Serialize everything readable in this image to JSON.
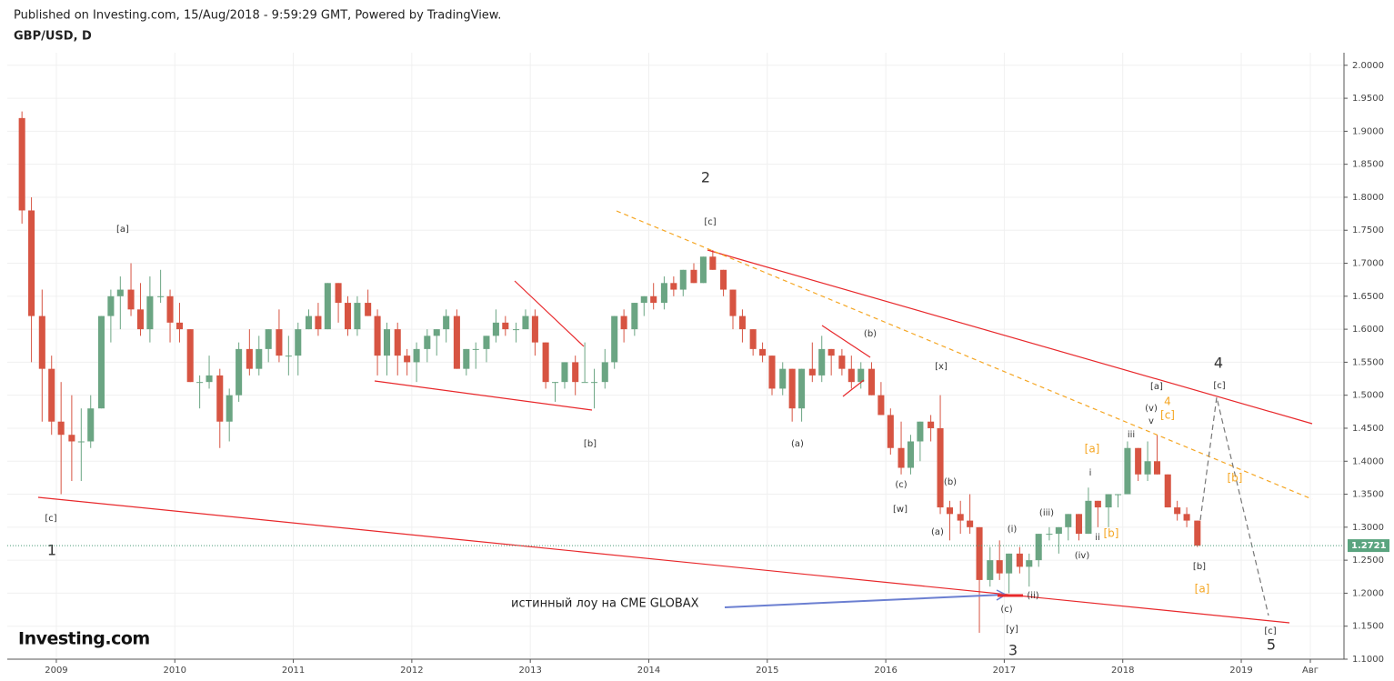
{
  "chart_data": {
    "type": "candlestick",
    "header": "Published on Investing.com, 15/Aug/2018 - 9:59:29 GMT, Powered by TradingView.",
    "symbol": "GBP/USD, D",
    "logo": "Investing.com",
    "up_color": "#6ba583",
    "down_color": "#d75442",
    "grid": true,
    "xlim": [
      2008.586,
      2019.867
    ],
    "ylim": [
      1.1,
      2.019
    ],
    "xticks": [
      2009,
      2010,
      2011,
      2012,
      2013,
      2014,
      2015,
      2016,
      2017,
      2018,
      2019,
      {
        "value": 2019.583,
        "label": "Авг"
      }
    ],
    "yticks": [
      {
        "value": 1.1,
        "label": "1.1000"
      },
      {
        "value": 1.15,
        "label": "1.1500"
      },
      {
        "value": 1.2,
        "label": "1.2000"
      },
      {
        "value": 1.25,
        "label": "1.2500"
      },
      {
        "value": 1.3,
        "label": "1.3000"
      },
      {
        "value": 1.35,
        "label": "1.3500"
      },
      {
        "value": 1.4,
        "label": "1.4000"
      },
      {
        "value": 1.45,
        "label": "1.4500"
      },
      {
        "value": 1.5,
        "label": "1.5000"
      },
      {
        "value": 1.55,
        "label": "1.5500"
      },
      {
        "value": 1.6,
        "label": "1.6000"
      },
      {
        "value": 1.65,
        "label": "1.6500"
      },
      {
        "value": 1.7,
        "label": "1.7000"
      },
      {
        "value": 1.75,
        "label": "1.7500"
      },
      {
        "value": 1.8,
        "label": "1.8000"
      },
      {
        "value": 1.85,
        "label": "1.8500"
      },
      {
        "value": 1.9,
        "label": "1.9000"
      },
      {
        "value": 1.95,
        "label": "1.9500"
      },
      {
        "value": 2.0,
        "label": "2.0000"
      }
    ],
    "x": [
      2008.71,
      2008.79,
      2008.88,
      2008.96,
      2009.04,
      2009.13,
      2009.21,
      2009.29,
      2009.38,
      2009.46,
      2009.54,
      2009.63,
      2009.71,
      2009.79,
      2009.88,
      2009.96,
      2010.04,
      2010.13,
      2010.21,
      2010.29,
      2010.38,
      2010.46,
      2010.54,
      2010.63,
      2010.71,
      2010.79,
      2010.88,
      2010.96,
      2011.04,
      2011.13,
      2011.21,
      2011.29,
      2011.38,
      2011.46,
      2011.54,
      2011.63,
      2011.71,
      2011.79,
      2011.88,
      2011.96,
      2012.04,
      2012.13,
      2012.21,
      2012.29,
      2012.38,
      2012.46,
      2012.54,
      2012.63,
      2012.71,
      2012.79,
      2012.88,
      2012.96,
      2013.04,
      2013.13,
      2013.21,
      2013.29,
      2013.38,
      2013.46,
      2013.54,
      2013.63,
      2013.71,
      2013.79,
      2013.88,
      2013.96,
      2014.04,
      2014.13,
      2014.21,
      2014.29,
      2014.38,
      2014.46,
      2014.54,
      2014.63,
      2014.71,
      2014.79,
      2014.88,
      2014.96,
      2015.04,
      2015.13,
      2015.21,
      2015.29,
      2015.38,
      2015.46,
      2015.54,
      2015.63,
      2015.71,
      2015.79,
      2015.88,
      2015.96,
      2016.04,
      2016.13,
      2016.21,
      2016.29,
      2016.38,
      2016.46,
      2016.54,
      2016.63,
      2016.71,
      2016.79,
      2016.88,
      2016.96,
      2017.04,
      2017.13,
      2017.21,
      2017.29,
      2017.38,
      2017.46,
      2017.54,
      2017.63,
      2017.71,
      2017.79,
      2017.88,
      2017.96,
      2018.04,
      2018.13,
      2018.21,
      2018.29,
      2018.38,
      2018.46,
      2018.54,
      2018.63
    ],
    "open": [
      1.92,
      1.78,
      1.62,
      1.54,
      1.46,
      1.44,
      1.43,
      1.43,
      1.48,
      1.62,
      1.65,
      1.66,
      1.63,
      1.6,
      1.65,
      1.65,
      1.61,
      1.6,
      1.52,
      1.52,
      1.53,
      1.46,
      1.5,
      1.57,
      1.54,
      1.57,
      1.6,
      1.56,
      1.56,
      1.6,
      1.62,
      1.6,
      1.67,
      1.64,
      1.6,
      1.64,
      1.62,
      1.56,
      1.6,
      1.56,
      1.55,
      1.57,
      1.59,
      1.6,
      1.62,
      1.54,
      1.57,
      1.57,
      1.59,
      1.61,
      1.6,
      1.6,
      1.62,
      1.58,
      1.52,
      1.52,
      1.55,
      1.52,
      1.52,
      1.52,
      1.55,
      1.62,
      1.6,
      1.64,
      1.65,
      1.64,
      1.67,
      1.66,
      1.69,
      1.67,
      1.71,
      1.69,
      1.66,
      1.62,
      1.6,
      1.57,
      1.56,
      1.51,
      1.54,
      1.48,
      1.54,
      1.53,
      1.57,
      1.56,
      1.54,
      1.52,
      1.54,
      1.5,
      1.47,
      1.42,
      1.39,
      1.43,
      1.46,
      1.45,
      1.33,
      1.32,
      1.31,
      1.3,
      1.22,
      1.25,
      1.23,
      1.26,
      1.24,
      1.25,
      1.29,
      1.29,
      1.3,
      1.32,
      1.29,
      1.34,
      1.33,
      1.35,
      1.35,
      1.42,
      1.38,
      1.4,
      1.38,
      1.33,
      1.32,
      1.31
    ],
    "high": [
      1.93,
      1.8,
      1.66,
      1.56,
      1.52,
      1.5,
      1.48,
      1.5,
      1.62,
      1.66,
      1.68,
      1.7,
      1.67,
      1.68,
      1.69,
      1.66,
      1.64,
      1.6,
      1.53,
      1.56,
      1.54,
      1.51,
      1.58,
      1.6,
      1.59,
      1.6,
      1.63,
      1.59,
      1.61,
      1.63,
      1.64,
      1.67,
      1.67,
      1.65,
      1.65,
      1.66,
      1.63,
      1.61,
      1.61,
      1.57,
      1.58,
      1.6,
      1.6,
      1.63,
      1.63,
      1.57,
      1.58,
      1.59,
      1.63,
      1.62,
      1.61,
      1.63,
      1.63,
      1.58,
      1.52,
      1.55,
      1.56,
      1.58,
      1.54,
      1.57,
      1.62,
      1.63,
      1.64,
      1.65,
      1.67,
      1.68,
      1.68,
      1.69,
      1.7,
      1.71,
      1.72,
      1.69,
      1.66,
      1.63,
      1.6,
      1.58,
      1.56,
      1.55,
      1.54,
      1.54,
      1.58,
      1.59,
      1.57,
      1.57,
      1.56,
      1.55,
      1.55,
      1.52,
      1.48,
      1.46,
      1.44,
      1.46,
      1.47,
      1.5,
      1.34,
      1.34,
      1.35,
      1.3,
      1.27,
      1.28,
      1.26,
      1.27,
      1.26,
      1.29,
      1.3,
      1.3,
      1.32,
      1.32,
      1.36,
      1.34,
      1.35,
      1.35,
      1.43,
      1.42,
      1.43,
      1.44,
      1.38,
      1.34,
      1.33,
      1.31
    ],
    "low": [
      1.76,
      1.55,
      1.46,
      1.44,
      1.35,
      1.37,
      1.37,
      1.42,
      1.48,
      1.58,
      1.6,
      1.62,
      1.59,
      1.58,
      1.64,
      1.58,
      1.58,
      1.52,
      1.48,
      1.51,
      1.42,
      1.43,
      1.49,
      1.53,
      1.53,
      1.55,
      1.55,
      1.53,
      1.53,
      1.6,
      1.59,
      1.6,
      1.61,
      1.59,
      1.59,
      1.62,
      1.53,
      1.53,
      1.53,
      1.53,
      1.52,
      1.55,
      1.56,
      1.58,
      1.54,
      1.53,
      1.54,
      1.55,
      1.58,
      1.59,
      1.58,
      1.6,
      1.56,
      1.51,
      1.49,
      1.51,
      1.5,
      1.52,
      1.48,
      1.51,
      1.54,
      1.58,
      1.59,
      1.62,
      1.63,
      1.63,
      1.65,
      1.65,
      1.67,
      1.67,
      1.69,
      1.65,
      1.6,
      1.58,
      1.56,
      1.55,
      1.5,
      1.5,
      1.46,
      1.46,
      1.52,
      1.52,
      1.53,
      1.53,
      1.51,
      1.51,
      1.5,
      1.47,
      1.41,
      1.38,
      1.38,
      1.4,
      1.43,
      1.32,
      1.28,
      1.29,
      1.29,
      1.14,
      1.21,
      1.22,
      1.2,
      1.23,
      1.21,
      1.24,
      1.28,
      1.26,
      1.28,
      1.28,
      1.29,
      1.3,
      1.3,
      1.33,
      1.35,
      1.37,
      1.37,
      1.38,
      1.33,
      1.31,
      1.3,
      1.27
    ],
    "close": [
      1.78,
      1.62,
      1.54,
      1.46,
      1.44,
      1.43,
      1.43,
      1.48,
      1.62,
      1.65,
      1.66,
      1.63,
      1.6,
      1.65,
      1.65,
      1.61,
      1.6,
      1.52,
      1.52,
      1.53,
      1.46,
      1.5,
      1.57,
      1.54,
      1.57,
      1.6,
      1.56,
      1.56,
      1.6,
      1.62,
      1.6,
      1.67,
      1.64,
      1.6,
      1.64,
      1.62,
      1.56,
      1.6,
      1.56,
      1.55,
      1.57,
      1.59,
      1.6,
      1.62,
      1.54,
      1.57,
      1.57,
      1.59,
      1.61,
      1.6,
      1.6,
      1.62,
      1.58,
      1.52,
      1.52,
      1.55,
      1.52,
      1.52,
      1.52,
      1.55,
      1.62,
      1.6,
      1.64,
      1.65,
      1.64,
      1.67,
      1.66,
      1.69,
      1.67,
      1.71,
      1.69,
      1.66,
      1.62,
      1.6,
      1.57,
      1.56,
      1.51,
      1.54,
      1.48,
      1.54,
      1.53,
      1.57,
      1.56,
      1.54,
      1.52,
      1.54,
      1.5,
      1.47,
      1.42,
      1.39,
      1.43,
      1.46,
      1.45,
      1.33,
      1.32,
      1.31,
      1.3,
      1.22,
      1.25,
      1.23,
      1.26,
      1.24,
      1.25,
      1.29,
      1.29,
      1.3,
      1.32,
      1.29,
      1.34,
      1.33,
      1.35,
      1.35,
      1.42,
      1.38,
      1.4,
      1.38,
      1.33,
      1.32,
      1.31,
      1.2721
    ],
    "annotations": [
      "2",
      "[c]",
      "[a]",
      "[b]",
      "[c]",
      "1",
      "(b)",
      "[x]",
      "(a)",
      "(c)",
      "[w]",
      "(b)",
      "(a)",
      "(i)",
      "(iii)",
      "(iv)",
      "(ii)",
      "(c)",
      "[y]",
      "3",
      "i",
      "ii",
      "[b]",
      "[a]",
      "iii",
      "(v)",
      "v",
      "[a]",
      "4",
      "[c]",
      "[b]",
      "[a]",
      "4",
      "[c]",
      "[b]",
      "[c]",
      "5",
      "истинный лоу на CME GLOBAX"
    ]
  }
}
